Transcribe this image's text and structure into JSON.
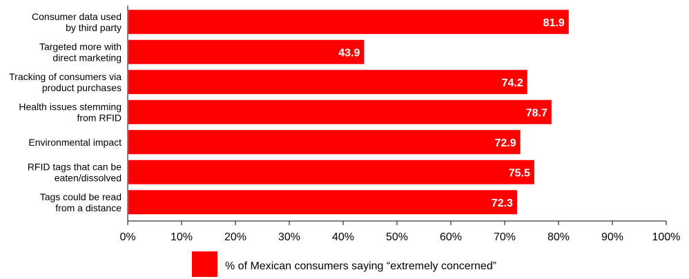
{
  "chart_data": {
    "type": "bar",
    "orientation": "horizontal",
    "categories": [
      [
        "Consumer data used",
        "by third party"
      ],
      [
        "Targeted more with",
        "direct marketing"
      ],
      [
        "Tracking of consumers via",
        "product purchases"
      ],
      [
        "Health issues stemming",
        "from RFID"
      ],
      [
        "Environmental impact"
      ],
      [
        "RFID tags that can be",
        "eaten/dissolved"
      ],
      [
        "Tags could be read",
        "from a distance"
      ]
    ],
    "series": [
      {
        "name": "% of Mexican consumers saying “extremely concerned”",
        "values": [
          81.9,
          43.9,
          74.2,
          78.7,
          72.9,
          75.5,
          72.3
        ],
        "color": "#ff0000"
      }
    ],
    "data_labels": [
      "81.9",
      "43.9",
      "74.2",
      "78.7",
      "72.9",
      "75.5",
      "72.3"
    ],
    "xlim": [
      0,
      100
    ],
    "x_ticks": [
      "0%",
      "10%",
      "20%",
      "30%",
      "40%",
      "50%",
      "60%",
      "70%",
      "80%",
      "90%",
      "100%"
    ],
    "title": "",
    "xlabel": "",
    "ylabel": "",
    "grid": false,
    "legend_position": "bottom"
  }
}
